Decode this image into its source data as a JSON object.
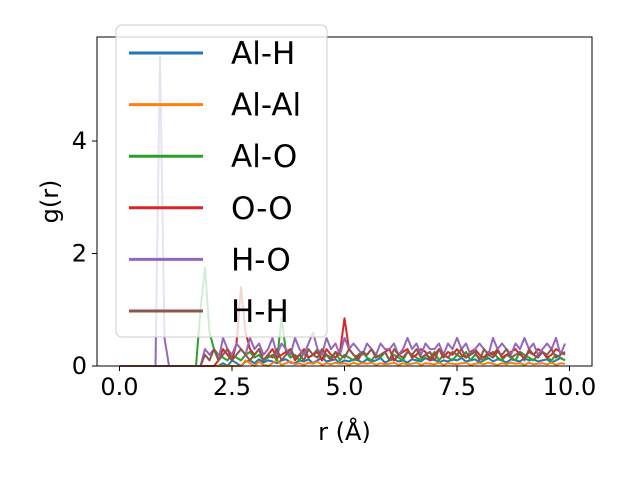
{
  "chart_data": {
    "type": "line",
    "title": "",
    "xlabel": "r (Å)",
    "ylabel": "g(r)",
    "xlim": [
      -0.5,
      10.5
    ],
    "ylim": [
      0,
      5.85
    ],
    "x_ticks": [
      0.0,
      2.5,
      5.0,
      7.5,
      10.0
    ],
    "x_tick_labels": [
      "0.0",
      "2.5",
      "5.0",
      "7.5",
      "10.0"
    ],
    "y_ticks": [
      0,
      2,
      4
    ],
    "y_tick_labels": [
      "0",
      "2",
      "4"
    ],
    "grid": false,
    "legend_position": "top-left",
    "x": [
      0.0,
      0.1,
      0.2,
      0.3,
      0.4,
      0.5,
      0.6,
      0.7,
      0.8,
      0.9,
      1.0,
      1.1,
      1.2,
      1.3,
      1.4,
      1.5,
      1.6,
      1.7,
      1.8,
      1.9,
      2.0,
      2.1,
      2.2,
      2.3,
      2.4,
      2.5,
      2.6,
      2.7,
      2.8,
      2.9,
      3.0,
      3.1,
      3.2,
      3.3,
      3.4,
      3.5,
      3.6,
      3.7,
      3.8,
      3.9,
      4.0,
      4.1,
      4.2,
      4.3,
      4.4,
      4.5,
      4.6,
      4.7,
      4.8,
      4.9,
      5.0,
      5.1,
      5.2,
      5.3,
      5.4,
      5.5,
      5.6,
      5.7,
      5.8,
      5.9,
      6.0,
      6.1,
      6.2,
      6.3,
      6.4,
      6.5,
      6.6,
      6.7,
      6.8,
      6.9,
      7.0,
      7.1,
      7.2,
      7.3,
      7.4,
      7.5,
      7.6,
      7.7,
      7.8,
      7.9,
      8.0,
      8.1,
      8.2,
      8.3,
      8.4,
      8.5,
      8.6,
      8.7,
      8.8,
      8.9,
      9.0,
      9.1,
      9.2,
      9.3,
      9.4,
      9.5,
      9.6,
      9.7,
      9.8,
      9.9
    ],
    "series": [
      {
        "name": "Al-H",
        "color": "#1f77b4",
        "values": [
          0,
          0,
          0,
          0,
          0,
          0,
          0,
          0,
          0,
          0,
          0,
          0,
          0,
          0,
          0,
          0,
          0,
          0,
          0,
          0,
          0,
          0,
          0,
          0.05,
          0,
          0.1,
          0.05,
          0,
          0.08,
          0.1,
          0.05,
          0.12,
          0.06,
          0.1,
          0.08,
          0.05,
          0.1,
          0.12,
          0.06,
          0.05,
          0.1,
          0.08,
          0.12,
          0.05,
          0.1,
          0.15,
          0.08,
          0.1,
          0.12,
          0.05,
          0.1,
          0.08,
          0.12,
          0.1,
          0.06,
          0.12,
          0.08,
          0.1,
          0.14,
          0.06,
          0.1,
          0.12,
          0.08,
          0.1,
          0.06,
          0.12,
          0.1,
          0.08,
          0.14,
          0.1,
          0.12,
          0.06,
          0.1,
          0.08,
          0.12,
          0.1,
          0.14,
          0.08,
          0.1,
          0.12,
          0.06,
          0.1,
          0.14,
          0.08,
          0.12,
          0.1,
          0.06,
          0.12,
          0.1,
          0.08,
          0.14,
          0.1,
          0.12,
          0.08,
          0.1,
          0.12,
          0.06,
          0.1,
          0.14,
          0.1
        ]
      },
      {
        "name": "Al-Al",
        "color": "#ff7f0e",
        "values": [
          0,
          0,
          0,
          0,
          0,
          0,
          0,
          0,
          0,
          0,
          0,
          0,
          0,
          0,
          0,
          0,
          0,
          0,
          0,
          0,
          0,
          0,
          0,
          0,
          0,
          0,
          0,
          0,
          0.1,
          0.05,
          0,
          0.08,
          0.02,
          0,
          0.05,
          0.1,
          0.02,
          0.05,
          0.08,
          0.03,
          0.05,
          0.02,
          0.06,
          0.04,
          0.08,
          0.02,
          0.05,
          0.03,
          0.06,
          0.04,
          0.05,
          0.02,
          0.06,
          0.03,
          0.05,
          0.04,
          0.06,
          0.02,
          0.05,
          0.03,
          0.04,
          0.06,
          0.02,
          0.05,
          0.03,
          0.04,
          0.06,
          0.02,
          0.05,
          0.04,
          0.03,
          0.06,
          0.02,
          0.05,
          0.04,
          0.03,
          0.05,
          0.06,
          0.02,
          0.04,
          0.05,
          0.03,
          0.06,
          0.04,
          0.02,
          0.05,
          0.03,
          0.06,
          0.04,
          0.05,
          0.02,
          0.06,
          0.03,
          0.04,
          0.05,
          0.03,
          0.06,
          0.02,
          0.05,
          0.04
        ]
      },
      {
        "name": "Al-O",
        "color": "#2ca02c",
        "values": [
          0,
          0,
          0,
          0,
          0,
          0,
          0,
          0,
          0,
          0,
          0,
          0,
          0,
          0,
          0,
          0,
          0,
          0,
          1.0,
          1.75,
          0.6,
          0.3,
          0.2,
          0.15,
          0.1,
          0.2,
          0.15,
          0.1,
          0.2,
          0.25,
          0.15,
          0.2,
          0.1,
          0.15,
          0.2,
          0.1,
          0.85,
          0.25,
          0.15,
          0.2,
          0.1,
          0.25,
          0.15,
          0.2,
          0.3,
          0.1,
          0.2,
          0.15,
          0.25,
          0.1,
          0.2,
          0.15,
          0.1,
          0.2,
          0.25,
          0.15,
          0.1,
          0.2,
          0.15,
          0.25,
          0.1,
          0.2,
          0.15,
          0.1,
          0.25,
          0.2,
          0.15,
          0.1,
          0.2,
          0.15,
          0.25,
          0.1,
          0.2,
          0.15,
          0.1,
          0.2,
          0.15,
          0.25,
          0.1,
          0.2,
          0.15,
          0.1,
          0.2,
          0.25,
          0.15,
          0.1,
          0.2,
          0.15,
          0.1,
          0.25,
          0.2,
          0.15,
          0.1,
          0.2,
          0.25,
          0.15,
          0.1,
          0.2,
          0.15,
          0.1
        ]
      },
      {
        "name": "O-O",
        "color": "#d62728",
        "values": [
          0,
          0,
          0,
          0,
          0,
          0,
          0,
          0,
          0,
          0,
          0,
          0,
          0,
          0,
          0,
          0,
          0,
          0,
          0,
          0,
          0,
          0,
          0.1,
          0.3,
          0.2,
          0.1,
          0.4,
          1.4,
          0.6,
          0.3,
          0.2,
          0.3,
          0.1,
          0.2,
          0.3,
          0.15,
          0.2,
          0.25,
          0.3,
          0.1,
          0.2,
          0.3,
          0.15,
          0.2,
          0.25,
          0.1,
          0.3,
          0.2,
          0.15,
          0.25,
          0.85,
          0.3,
          0.2,
          0.15,
          0.25,
          0.2,
          0.3,
          0.15,
          0.2,
          0.25,
          0.3,
          0.1,
          0.2,
          0.25,
          0.3,
          0.15,
          0.2,
          0.3,
          0.25,
          0.1,
          0.2,
          0.3,
          0.15,
          0.25,
          0.2,
          0.3,
          0.2,
          0.15,
          0.25,
          0.3,
          0.2,
          0.15,
          0.25,
          0.2,
          0.3,
          0.15,
          0.2,
          0.25,
          0.3,
          0.2,
          0.15,
          0.25,
          0.2,
          0.3,
          0.25,
          0.15,
          0.2,
          0.3,
          0.25,
          0.2
        ]
      },
      {
        "name": "H-O",
        "color": "#9467bd",
        "values": [
          0,
          0,
          0,
          0,
          0,
          0,
          0,
          0,
          0,
          5.5,
          0.5,
          0,
          0,
          0,
          0,
          0,
          0,
          0,
          0,
          0.3,
          0.2,
          0.3,
          0.1,
          0.5,
          0.3,
          0.2,
          0.4,
          0.3,
          0.2,
          0.5,
          0.3,
          0.4,
          0.2,
          0.3,
          0.5,
          0.2,
          0.4,
          0.3,
          0.2,
          0.5,
          0.3,
          0.2,
          0.4,
          0.6,
          0.3,
          0.2,
          0.5,
          0.3,
          0.4,
          0.2,
          0.5,
          0.3,
          0.4,
          0.3,
          0.2,
          0.4,
          0.3,
          0.2,
          0.4,
          0.3,
          0.3,
          0.4,
          0.2,
          0.3,
          0.5,
          0.3,
          0.4,
          0.2,
          0.4,
          0.3,
          0.3,
          0.4,
          0.2,
          0.4,
          0.3,
          0.5,
          0.3,
          0.4,
          0.2,
          0.3,
          0.4,
          0.3,
          0.2,
          0.5,
          0.3,
          0.4,
          0.3,
          0.2,
          0.4,
          0.3,
          0.5,
          0.3,
          0.4,
          0.2,
          0.3,
          0.4,
          0.3,
          0.5,
          0.2,
          0.4
        ]
      },
      {
        "name": "H-H",
        "color": "#8c564b",
        "values": [
          0,
          0,
          0,
          0,
          0,
          0,
          0,
          0,
          0,
          0,
          0,
          0,
          0,
          0,
          0,
          0,
          0,
          0,
          0,
          0.2,
          0.1,
          0.3,
          0.1,
          0.2,
          0.3,
          0.1,
          0.2,
          0.3,
          0.2,
          0.1,
          0.2,
          0.3,
          0.1,
          0.2,
          0.15,
          0.3,
          0.1,
          0.2,
          0.3,
          0.15,
          0.2,
          0.1,
          0.3,
          0.2,
          0.15,
          0.3,
          0.2,
          0.1,
          0.25,
          0.2,
          0.15,
          0.3,
          0.2,
          0.1,
          0.25,
          0.2,
          0.3,
          0.15,
          0.2,
          0.25,
          0.1,
          0.3,
          0.2,
          0.15,
          0.25,
          0.2,
          0.3,
          0.15,
          0.2,
          0.25,
          0.1,
          0.3,
          0.2,
          0.15,
          0.25,
          0.2,
          0.3,
          0.15,
          0.2,
          0.25,
          0.1,
          0.3,
          0.2,
          0.15,
          0.25,
          0.2,
          0.3,
          0.15,
          0.2,
          0.25,
          0.1,
          0.3,
          0.2,
          0.15,
          0.25,
          0.2,
          0.3,
          0.15,
          0.2,
          0.25
        ]
      }
    ]
  }
}
